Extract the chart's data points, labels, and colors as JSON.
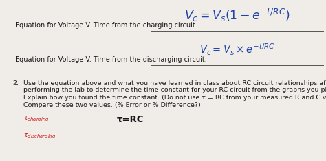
{
  "bg_color": "#f0ede8",
  "line1_label": "Equation for Voltage V. Time from the charging circuit.",
  "line1_eq": "$V_c = V_s(1 - e^{-t/RC})$",
  "line2_label": "Equation for Voltage V. Time from the discharging circuit.",
  "line2_eq": "$V_c = V_s \\times e^{-t/RC}$",
  "num2": "2.",
  "para_line1": "Use the equation above and what you have learned in class about RC circuit relationships after",
  "para_line2": "performing the lab to determine the time constant for your RC circuit from the graphs you plotted.",
  "para_line3": "Explain how you found the time constant. (Do not use τ = RC from your measured R and C values.)",
  "para_line4": "Compare these two values. (% Error or % Difference?)",
  "tau_rc": "τ=RC",
  "label_color": "#1a1a1a",
  "eq_color": "#2244aa",
  "red_color": "#cc1111",
  "line_color": "#555555",
  "label_fontsize": 7.0,
  "eq1_fontsize": 12.5,
  "eq2_fontsize": 10.5,
  "body_fontsize": 6.8,
  "tau_label_fontsize": 7.0,
  "tau_rc_fontsize": 9.5
}
